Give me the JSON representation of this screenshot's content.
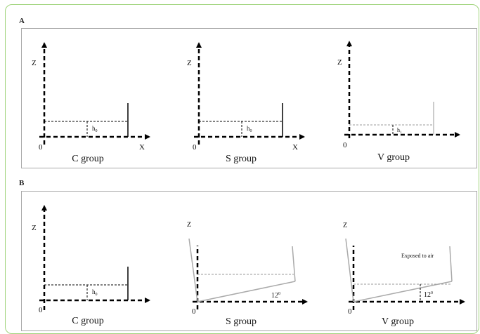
{
  "panel_a": {
    "label": "A",
    "diagrams": [
      {
        "axis_z": "Z",
        "origin": "0",
        "axis_x": "X",
        "height_label": "h",
        "height_sub": "0",
        "caption": "C group"
      },
      {
        "axis_z": "Z",
        "origin": "0",
        "axis_x": "X",
        "height_label": "h",
        "height_sub": "0",
        "caption": "S group"
      },
      {
        "axis_z": "Z",
        "origin": "0",
        "height_label": "h",
        "height_sub": "1",
        "caption": "V group"
      }
    ]
  },
  "panel_b": {
    "label": "B",
    "diagrams": [
      {
        "axis_z": "Z",
        "origin": "0",
        "height_label": "h",
        "height_sub": "0",
        "caption": "C group"
      },
      {
        "axis_z": "Z",
        "origin": "0",
        "angle_label": "12",
        "angle_sup": "0",
        "caption": "S group"
      },
      {
        "axis_z": "Z",
        "origin": "0",
        "angle_label": "12",
        "angle_sup": "0",
        "annotation": "Exposed to air",
        "caption": "V group"
      }
    ]
  },
  "colors": {
    "frame_border": "#9fd37a",
    "panel_border": "#a8a8a8",
    "axis": "#000000",
    "tilted_line": "#aaaaaa"
  }
}
